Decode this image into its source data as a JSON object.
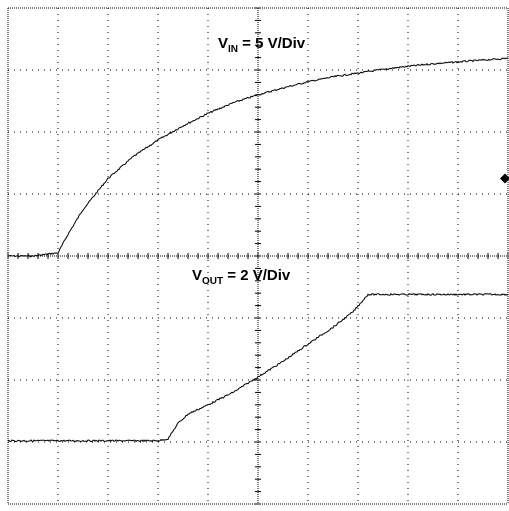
{
  "chart_data": {
    "type": "line",
    "grid": true,
    "divisions": {
      "x": 10,
      "y": 8
    },
    "x_range_div": [
      0,
      10
    ],
    "y_range_div": [
      -4,
      4
    ],
    "series": [
      {
        "label_prefix": "V",
        "label_sub": "IN",
        "label_suffix": " = 5 V/Div",
        "baseline_div": 0,
        "x_div": [
          0,
          0.5,
          1.0,
          1.2,
          1.5,
          2.0,
          2.5,
          3.0,
          3.5,
          4.0,
          4.5,
          5.0,
          5.5,
          6.0,
          6.5,
          7.0,
          7.5,
          8.0,
          8.5,
          9.0,
          9.5,
          10.0
        ],
        "y_div": [
          0,
          0,
          0.05,
          0.35,
          0.75,
          1.25,
          1.6,
          1.87,
          2.1,
          2.3,
          2.47,
          2.6,
          2.71,
          2.81,
          2.89,
          2.95,
          3.01,
          3.06,
          3.1,
          3.13,
          3.16,
          3.19
        ]
      },
      {
        "label_prefix": "V",
        "label_sub": "OUT",
        "label_suffix": " = 2 V/Div",
        "baseline_div": -3,
        "x_div": [
          0,
          1.0,
          2.0,
          3.0,
          3.2,
          3.4,
          3.6,
          4.0,
          4.5,
          5.0,
          5.5,
          6.0,
          6.5,
          6.9,
          7.2,
          8.0,
          9.0,
          10.0
        ],
        "y_div": [
          -2.98,
          -2.98,
          -2.98,
          -2.98,
          -2.95,
          -2.7,
          -2.55,
          -2.4,
          -2.2,
          -1.95,
          -1.7,
          -1.42,
          -1.15,
          -0.9,
          -0.62,
          -0.62,
          -0.62,
          -0.62
        ]
      }
    ],
    "right_marker": {
      "shape": "diamond",
      "y_div": 1.25
    }
  }
}
